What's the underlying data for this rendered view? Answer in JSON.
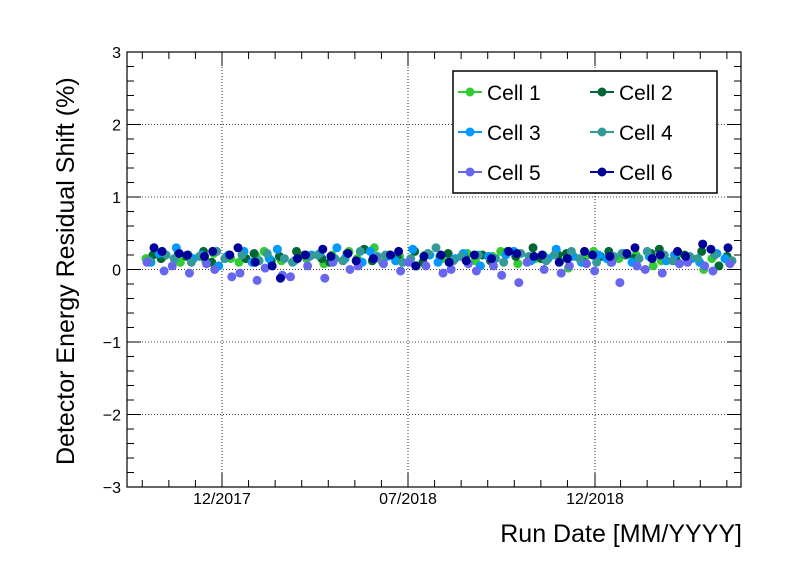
{
  "chart_data": {
    "type": "scatter",
    "xlabel": "Run Date [MM/YYYY]",
    "ylabel": "Detector Energy Residual Shift (%)",
    "ylim": [
      -3,
      3
    ],
    "y_ticks": [
      "−3",
      "−2",
      "−1",
      "0",
      "1",
      "2",
      "3"
    ],
    "x_ticks": [
      "12/2017",
      "07/2018",
      "12/2018"
    ],
    "grid": true,
    "legend_placement": "top-right",
    "series": [
      {
        "name": "Cell 1",
        "color": "#33cc33",
        "values": [
          0.15,
          0.18,
          0.1,
          0.2,
          0.12,
          0.22,
          0.15,
          0.1,
          0.18,
          0.25,
          0.12,
          0.2,
          0.15,
          0.08,
          0.2,
          0.25,
          0.15,
          0.3,
          0.1,
          0.18,
          0.05,
          0.2,
          0.15,
          0.1,
          0.22,
          0.12,
          0.18,
          0.25,
          0.08,
          0.15,
          0.2,
          0.12,
          0.02,
          0.18,
          0.25,
          0.1,
          0.15,
          0.2,
          0.05,
          0.12,
          0.22,
          0.18,
          0.0,
          0.15,
          0.1
        ]
      },
      {
        "name": "Cell 2",
        "color": "#006633",
        "values": [
          0.2,
          0.15,
          0.22,
          0.18,
          0.25,
          0.1,
          0.2,
          0.15,
          0.22,
          0.12,
          0.18,
          0.25,
          0.2,
          0.15,
          0.1,
          0.22,
          0.28,
          0.12,
          0.2,
          0.15,
          0.25,
          0.1,
          0.18,
          0.22,
          0.15,
          0.2,
          0.12,
          0.25,
          0.18,
          0.3,
          0.15,
          0.2,
          0.22,
          0.1,
          0.18,
          0.25,
          0.2,
          0.15,
          0.22,
          0.28,
          0.12,
          0.2,
          0.25,
          0.05,
          0.18
        ]
      },
      {
        "name": "Cell 3",
        "color": "#0099ff",
        "values": [
          0.1,
          0.22,
          0.3,
          0.15,
          0.2,
          0.05,
          0.18,
          0.25,
          0.1,
          0.15,
          0.28,
          0.12,
          0.2,
          0.22,
          0.3,
          0.15,
          0.1,
          0.25,
          0.18,
          0.12,
          0.28,
          0.2,
          0.1,
          0.15,
          0.22,
          0.05,
          0.18,
          0.2,
          0.25,
          0.12,
          0.15,
          0.28,
          0.18,
          0.1,
          0.2,
          0.15,
          0.22,
          0.1,
          0.18,
          0.12,
          0.2,
          0.15,
          0.1,
          0.22,
          0.15
        ]
      },
      {
        "name": "Cell 4",
        "color": "#339999",
        "values": [
          0.12,
          0.2,
          0.15,
          0.1,
          0.18,
          0.25,
          0.15,
          0.2,
          0.12,
          0.22,
          0.15,
          0.1,
          0.18,
          0.2,
          0.15,
          0.12,
          0.25,
          0.18,
          0.2,
          0.1,
          0.15,
          0.22,
          0.3,
          0.12,
          0.18,
          0.2,
          0.15,
          0.1,
          0.22,
          0.18,
          0.12,
          0.2,
          0.25,
          0.15,
          0.1,
          0.18,
          0.22,
          0.15,
          0.25,
          0.2,
          0.12,
          0.18,
          0.15,
          0.2,
          0.12
        ]
      },
      {
        "name": "Cell 5",
        "color": "#6666ee",
        "values": [
          0.1,
          -0.02,
          0.05,
          -0.05,
          0.08,
          0.0,
          -0.1,
          -0.05,
          -0.15,
          0.02,
          -0.08,
          -0.1,
          0.05,
          -0.12,
          0.1,
          0.0,
          0.05,
          0.15,
          0.08,
          -0.02,
          0.1,
          0.05,
          -0.05,
          0.0,
          0.08,
          -0.02,
          0.05,
          -0.08,
          -0.18,
          0.1,
          0.0,
          -0.05,
          0.05,
          0.08,
          -0.02,
          0.1,
          -0.18,
          0.05,
          0.0,
          -0.05,
          0.08,
          0.1,
          0.05,
          -0.02,
          0.08
        ]
      },
      {
        "name": "Cell 6",
        "color": "#000099",
        "values": [
          0.3,
          0.25,
          0.22,
          0.2,
          0.18,
          0.25,
          0.2,
          0.3,
          0.1,
          0.05,
          -0.12,
          0.15,
          0.2,
          0.28,
          0.18,
          0.22,
          0.12,
          0.15,
          0.2,
          0.25,
          0.05,
          0.18,
          0.2,
          0.1,
          0.12,
          0.2,
          0.15,
          0.25,
          0.22,
          0.18,
          0.2,
          0.1,
          0.15,
          0.25,
          0.2,
          0.18,
          0.22,
          0.3,
          0.15,
          0.2,
          0.25,
          0.18,
          0.35,
          0.28,
          0.3
        ]
      }
    ]
  }
}
